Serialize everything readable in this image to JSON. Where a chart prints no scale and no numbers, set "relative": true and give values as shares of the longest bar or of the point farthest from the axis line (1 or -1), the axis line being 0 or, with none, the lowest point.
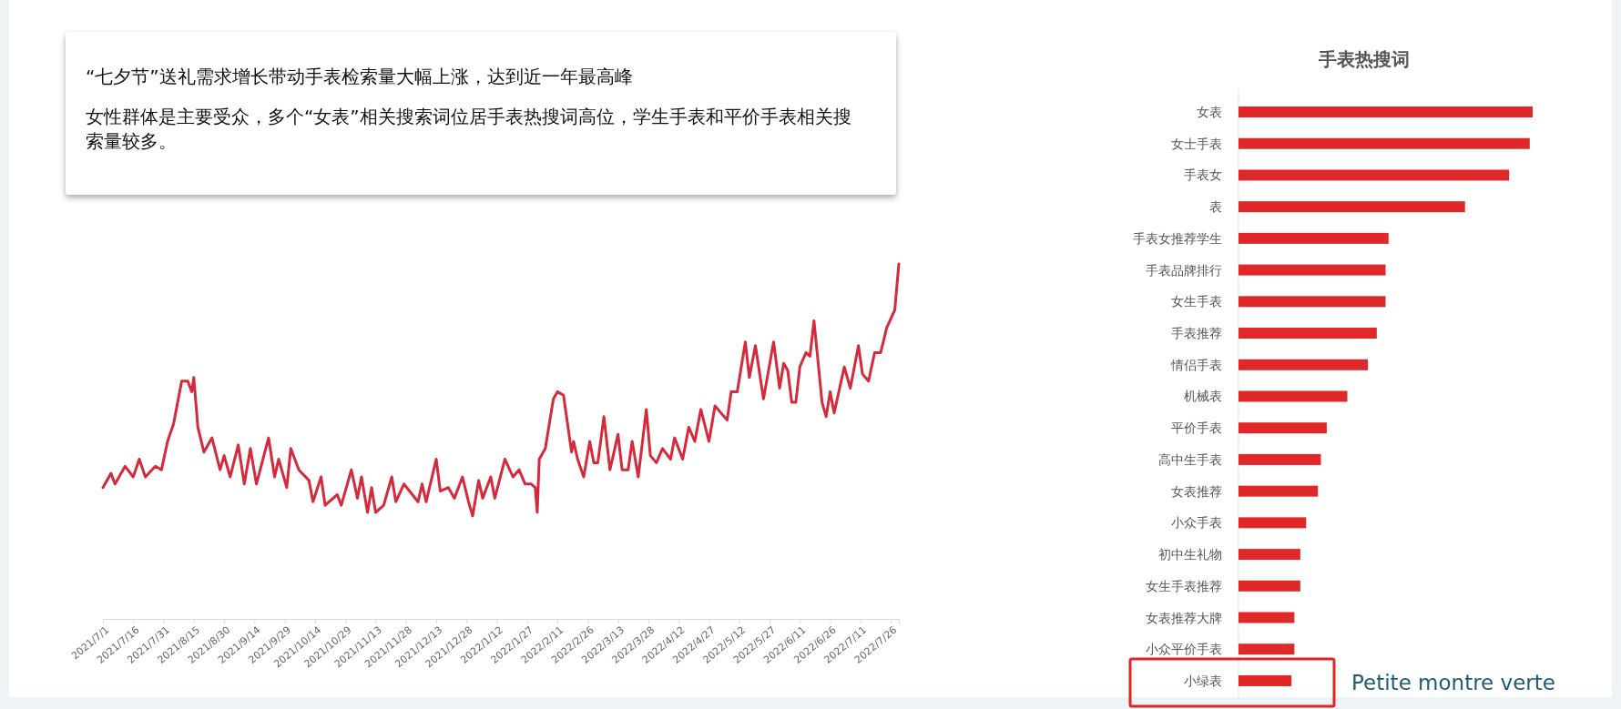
{
  "chart_data": [
    {
      "type": "line",
      "relative": true,
      "annotations": [
        "“七夕节”送礼需求增长带动手表检索量大幅上涨，达到近一年最高峰",
        "女性群体是主要受众，多个“女表”相关搜索词位居手表热搜词高位，学生手表和平价手表相关搜索量较多。"
      ],
      "xlim": [
        "2021-07-01",
        "2022-07-30"
      ],
      "xticks": [
        {
          "value": "2021-07-01",
          "label": "2021/7/1"
        },
        {
          "value": "2021-07-16",
          "label": "2021/7/16"
        },
        {
          "value": "2021-07-31",
          "label": "2021/7/31"
        },
        {
          "value": "2021-08-15",
          "label": "2021/8/15"
        },
        {
          "value": "2021-08-30",
          "label": "2021/8/30"
        },
        {
          "value": "2021-09-14",
          "label": "2021/9/14"
        },
        {
          "value": "2021-09-29",
          "label": "2021/9/29"
        },
        {
          "value": "2021-10-14",
          "label": "2021/10/14"
        },
        {
          "value": "2021-10-29",
          "label": "2021/10/29"
        },
        {
          "value": "2021-11-13",
          "label": "2021/11/13"
        },
        {
          "value": "2021-11-28",
          "label": "2021/11/28"
        },
        {
          "value": "2021-12-13",
          "label": "2021/12/13"
        },
        {
          "value": "2021-12-28",
          "label": "2021/12/28"
        },
        {
          "value": "2022-01-12",
          "label": "2022/1/12"
        },
        {
          "value": "2022-01-27",
          "label": "2022/1/27"
        },
        {
          "value": "2022-02-11",
          "label": "2022/2/11"
        },
        {
          "value": "2022-02-26",
          "label": "2022/2/26"
        },
        {
          "value": "2022-03-13",
          "label": "2022/3/13"
        },
        {
          "value": "2022-03-28",
          "label": "2022/3/28"
        },
        {
          "value": "2022-04-12",
          "label": "2022/4/12"
        },
        {
          "value": "2022-04-27",
          "label": "2022/4/27"
        },
        {
          "value": "2022-05-12",
          "label": "2022/5/12"
        },
        {
          "value": "2022-05-27",
          "label": "2022/5/27"
        },
        {
          "value": "2022-06-11",
          "label": "2022/6/11"
        },
        {
          "value": "2022-06-26",
          "label": "2022/6/26"
        },
        {
          "value": "2022-07-11",
          "label": "2022/7/11"
        },
        {
          "value": "2022-07-26",
          "label": "2022/7/26"
        }
      ],
      "tick_labels": "x",
      "series": [
        {
          "color": "#d42a3c",
          "x": [
            "2021-07-01",
            "2021-07-05",
            "2021-07-07",
            "2021-07-12",
            "2021-07-16",
            "2021-07-19",
            "2021-07-22",
            "2021-07-27",
            "2021-07-30",
            "2021-08-02",
            "2021-08-05",
            "2021-08-09",
            "2021-08-12",
            "2021-08-14",
            "2021-08-15",
            "2021-08-17",
            "2021-08-20",
            "2021-08-24",
            "2021-08-28",
            "2021-08-30",
            "2021-09-02",
            "2021-09-06",
            "2021-09-09",
            "2021-09-12",
            "2021-09-15",
            "2021-09-21",
            "2021-09-24",
            "2021-09-26",
            "2021-09-30",
            "2021-10-02",
            "2021-10-06",
            "2021-10-11",
            "2021-10-13",
            "2021-10-17",
            "2021-10-19",
            "2021-10-25",
            "2021-10-27",
            "2021-11-01",
            "2021-11-04",
            "2021-11-06",
            "2021-11-09",
            "2021-11-11",
            "2021-11-13",
            "2021-11-17",
            "2021-11-21",
            "2021-11-23",
            "2021-11-27",
            "2021-12-04",
            "2021-12-06",
            "2021-12-08",
            "2021-12-13",
            "2021-12-15",
            "2021-12-19",
            "2021-12-22",
            "2021-12-26",
            "2021-12-29",
            "2021-12-31",
            "2022-01-03",
            "2022-01-05",
            "2022-01-09",
            "2022-01-11",
            "2022-01-16",
            "2022-01-20",
            "2022-01-23",
            "2022-01-26",
            "2022-01-29",
            "2022-01-31",
            "2022-02-01",
            "2022-02-02",
            "2022-02-05",
            "2022-02-09",
            "2022-02-11",
            "2022-02-14",
            "2022-02-18",
            "2022-02-19",
            "2022-02-21",
            "2022-02-24",
            "2022-02-27",
            "2022-03-01",
            "2022-03-03",
            "2022-03-06",
            "2022-03-09",
            "2022-03-13",
            "2022-03-15",
            "2022-03-18",
            "2022-03-20",
            "2022-03-23",
            "2022-03-27",
            "2022-03-29",
            "2022-04-01",
            "2022-04-04",
            "2022-04-08",
            "2022-04-10",
            "2022-04-14",
            "2022-04-17",
            "2022-04-20",
            "2022-04-23",
            "2022-04-27",
            "2022-04-30",
            "2022-05-06",
            "2022-05-08",
            "2022-05-11",
            "2022-05-15",
            "2022-05-17",
            "2022-05-20",
            "2022-05-24",
            "2022-05-29",
            "2022-06-01",
            "2022-06-03",
            "2022-06-05",
            "2022-06-07",
            "2022-06-09",
            "2022-06-11",
            "2022-06-14",
            "2022-06-16",
            "2022-06-18",
            "2022-06-22",
            "2022-06-24",
            "2022-06-26",
            "2022-06-28",
            "2022-07-03",
            "2022-07-06",
            "2022-07-10",
            "2022-07-12",
            "2022-07-15",
            "2022-07-18",
            "2022-07-21",
            "2022-07-24",
            "2022-07-28",
            "2022-07-30"
          ],
          "values": [
            0.37,
            0.41,
            0.38,
            0.43,
            0.4,
            0.45,
            0.4,
            0.43,
            0.42,
            0.5,
            0.55,
            0.67,
            0.67,
            0.64,
            0.68,
            0.54,
            0.47,
            0.51,
            0.42,
            0.46,
            0.4,
            0.49,
            0.38,
            0.48,
            0.38,
            0.51,
            0.4,
            0.45,
            0.37,
            0.48,
            0.42,
            0.39,
            0.33,
            0.4,
            0.32,
            0.35,
            0.32,
            0.42,
            0.34,
            0.4,
            0.3,
            0.37,
            0.3,
            0.32,
            0.4,
            0.33,
            0.38,
            0.33,
            0.38,
            0.33,
            0.45,
            0.36,
            0.37,
            0.34,
            0.4,
            0.33,
            0.29,
            0.39,
            0.34,
            0.4,
            0.34,
            0.45,
            0.4,
            0.42,
            0.38,
            0.38,
            0.37,
            0.3,
            0.45,
            0.48,
            0.62,
            0.64,
            0.63,
            0.47,
            0.5,
            0.45,
            0.4,
            0.5,
            0.44,
            0.44,
            0.57,
            0.42,
            0.52,
            0.42,
            0.42,
            0.5,
            0.4,
            0.59,
            0.46,
            0.44,
            0.48,
            0.45,
            0.51,
            0.45,
            0.54,
            0.5,
            0.59,
            0.5,
            0.6,
            0.56,
            0.64,
            0.64,
            0.78,
            0.68,
            0.77,
            0.62,
            0.78,
            0.65,
            0.72,
            0.7,
            0.61,
            0.61,
            0.71,
            0.75,
            0.74,
            0.84,
            0.61,
            0.57,
            0.64,
            0.58,
            0.71,
            0.65,
            0.77,
            0.69,
            0.67,
            0.75,
            0.75,
            0.82,
            0.87,
            1
          ]
        }
      ]
    },
    {
      "type": "bar",
      "orientation": "horizontal",
      "relative": true,
      "title": "手表热搜词",
      "tick_labels": "y",
      "categories": [
        "女表",
        "女士手表",
        "手表女",
        "表",
        "手表女推荐学生",
        "手表品牌排行",
        "女生手表",
        "手表推荐",
        "情侣手表",
        "机械表",
        "平价手表",
        "高中生手表",
        "女表推荐",
        "小众手表",
        "初中生礼物",
        "女生手表推荐",
        "女表推荐大牌",
        "小众平价手表",
        "小绿表"
      ],
      "values": [
        1,
        0.99,
        0.92,
        0.77,
        0.51,
        0.5,
        0.5,
        0.47,
        0.44,
        0.37,
        0.3,
        0.28,
        0.27,
        0.23,
        0.21,
        0.21,
        0.19,
        0.19,
        0.18
      ],
      "color": "#e0282a",
      "annotations": [
        "Petite montre verte"
      ]
    }
  ]
}
